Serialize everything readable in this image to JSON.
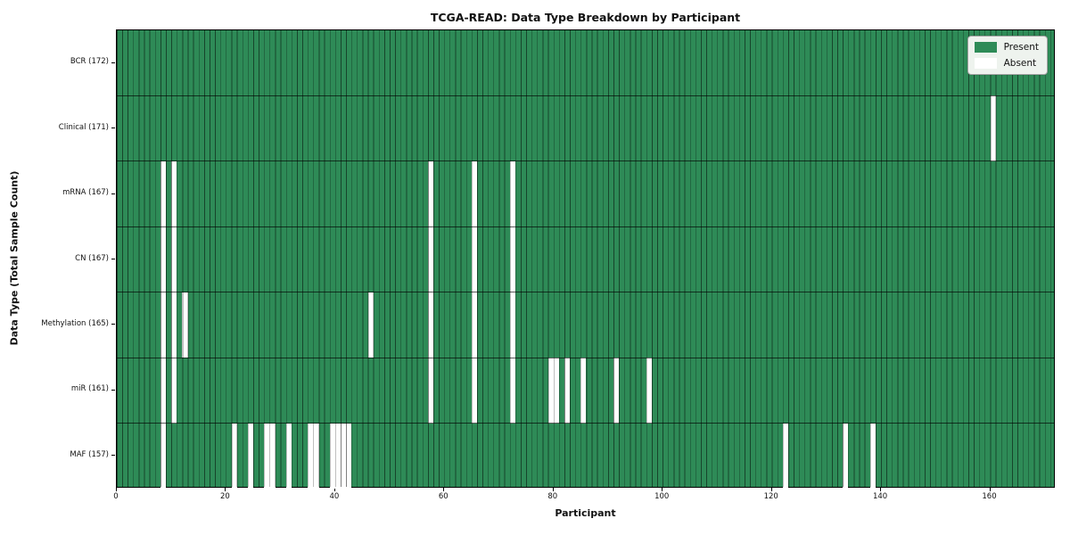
{
  "chart_data": {
    "type": "heatmap",
    "title": "TCGA-READ: Data Type Breakdown by Participant",
    "xlabel": "Participant",
    "ylabel": "Data Type (Total Sample Count)",
    "participants": 172,
    "xlim": [
      0,
      172
    ],
    "x_ticks": [
      0,
      20,
      40,
      60,
      80,
      100,
      120,
      140,
      160
    ],
    "grid": "per-cell black edges, horizontal row dividers",
    "legend_position": "upper right",
    "legend": [
      {
        "label": "Present",
        "color": "#2e8b57"
      },
      {
        "label": "Absent",
        "color": "#ffffff"
      }
    ],
    "rows": [
      {
        "label": "BCR (172)",
        "data_type": "BCR",
        "total_samples": 172,
        "absent_participants": []
      },
      {
        "label": "Clinical (171)",
        "data_type": "Clinical",
        "total_samples": 171,
        "absent_participants": [
          160
        ]
      },
      {
        "label": "mRNA (167)",
        "data_type": "mRNA",
        "total_samples": 167,
        "absent_participants": [
          8,
          10,
          57,
          65,
          72
        ]
      },
      {
        "label": "CN (167)",
        "data_type": "CN",
        "total_samples": 167,
        "absent_participants": [
          8,
          10,
          57,
          65,
          72
        ]
      },
      {
        "label": "Methylation (165)",
        "data_type": "Methylation",
        "total_samples": 165,
        "absent_participants": [
          8,
          10,
          12,
          46,
          57,
          65,
          72
        ]
      },
      {
        "label": "miR (161)",
        "data_type": "miR",
        "total_samples": 161,
        "absent_participants": [
          8,
          10,
          57,
          65,
          72,
          79,
          80,
          82,
          85,
          91,
          97
        ]
      },
      {
        "label": "MAF (157)",
        "data_type": "MAF",
        "total_samples": 157,
        "absent_participants": [
          8,
          21,
          24,
          27,
          28,
          31,
          35,
          36,
          39,
          40,
          41,
          42,
          122,
          133,
          138
        ]
      }
    ],
    "colors": {
      "present": "#2e8b57",
      "absent": "#ffffff",
      "cell_edge": "rgba(0,0,0,0.5)",
      "row_divider": "rgba(0,0,0,0.65)",
      "plot_border": "#000000",
      "legend_bg": "#eef3ee",
      "legend_border": "#a3a3a3",
      "background": "#ffffff"
    }
  }
}
